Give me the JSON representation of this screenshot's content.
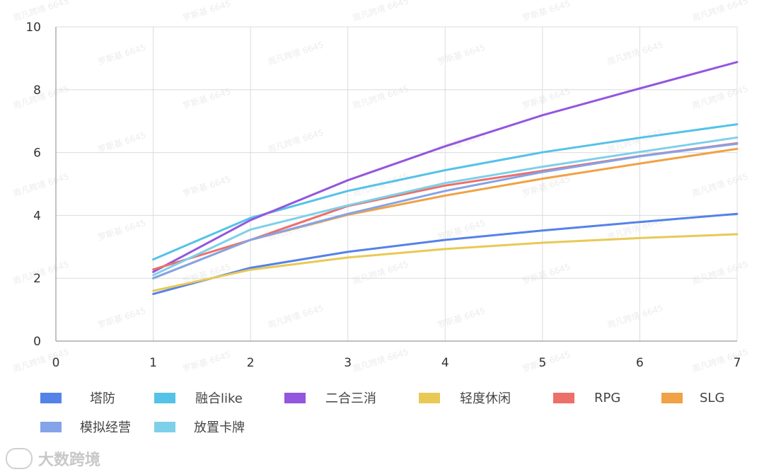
{
  "chart_data": {
    "type": "line",
    "xlim": [
      0,
      7
    ],
    "ylim": [
      0,
      10
    ],
    "x_ticks": [
      "0",
      "1",
      "2",
      "3",
      "4",
      "5",
      "6",
      "7"
    ],
    "y_ticks": [
      "0",
      "2",
      "4",
      "6",
      "8",
      "10"
    ],
    "x": [
      1,
      2,
      3,
      4,
      5,
      6,
      7
    ],
    "grid": true,
    "legend_position": "bottom",
    "series": [
      {
        "name": "塔防",
        "color": "#5482e9",
        "values": [
          1.5,
          2.33,
          2.84,
          3.22,
          3.52,
          3.79,
          4.05
        ]
      },
      {
        "name": "融合like",
        "color": "#55c2e8",
        "values": [
          2.6,
          3.92,
          4.78,
          5.44,
          6.01,
          6.47,
          6.9
        ]
      },
      {
        "name": "二合三消",
        "color": "#9356de",
        "values": [
          2.2,
          3.85,
          5.12,
          6.2,
          7.19,
          8.04,
          8.88
        ]
      },
      {
        "name": "轻度休闲",
        "color": "#e8c956",
        "values": [
          1.6,
          2.27,
          2.66,
          2.93,
          3.13,
          3.28,
          3.4
        ]
      },
      {
        "name": "RPG",
        "color": "#ec6f6a",
        "values": [
          2.28,
          3.22,
          4.3,
          4.95,
          5.42,
          5.89,
          6.3
        ]
      },
      {
        "name": "SLG",
        "color": "#f0a244",
        "values": [
          2.0,
          3.22,
          4.02,
          4.63,
          5.17,
          5.65,
          6.12
        ]
      },
      {
        "name": "模拟经营",
        "color": "#84a3e8",
        "values": [
          2.0,
          3.22,
          4.05,
          4.78,
          5.38,
          5.88,
          6.28
        ]
      },
      {
        "name": "放置卡牌",
        "color": "#7ed0ea",
        "values": [
          2.1,
          3.55,
          4.32,
          5.03,
          5.55,
          6.02,
          6.48
        ]
      }
    ]
  },
  "watermark": {
    "brand": "大数跨境",
    "tiles": [
      "周凡跨境 6645",
      "罗斯基 6645"
    ]
  }
}
